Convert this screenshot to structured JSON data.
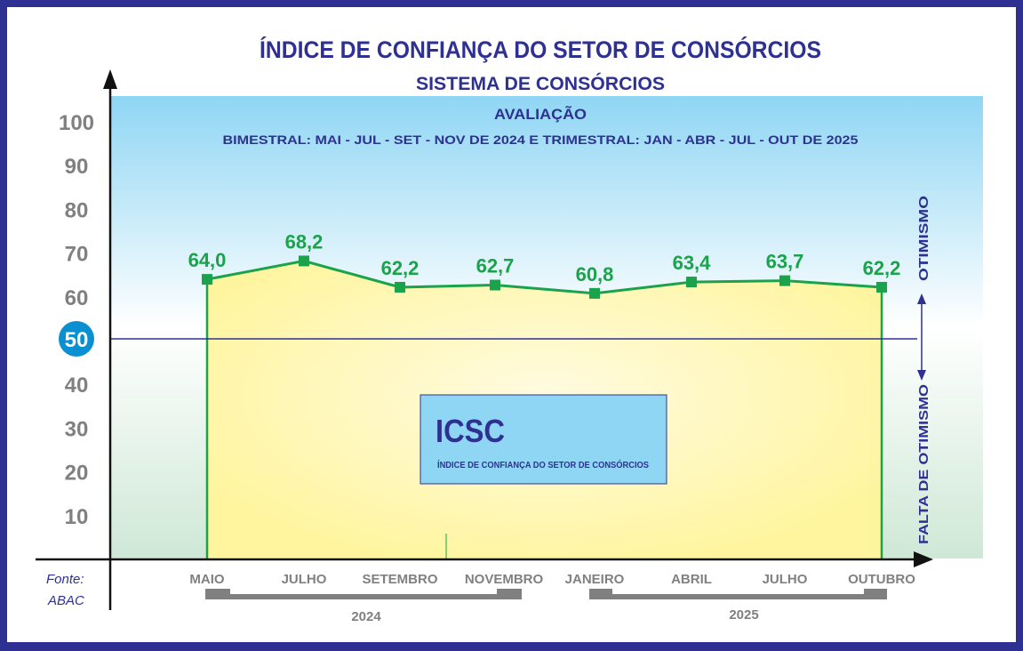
{
  "chart_data": {
    "type": "line",
    "title": "ÍNDICE DE CONFIANÇA DO SETOR DE CONSÓRCIOS",
    "subtitle": "SISTEMA DE CONSÓRCIOS",
    "evaluation_title": "AVALIAÇÃO",
    "evaluation_text": "BIMESTRAL: MAI - JUL - SET - NOV DE 2024 E TRIMESTRAL: JAN - ABR - JUL - OUT DE 2025",
    "categories": [
      "MAIO",
      "JULHO",
      "SETEMBRO",
      "NOVEMBRO",
      "JANEIRO",
      "ABRIL",
      "JULHO",
      "OUTUBRO"
    ],
    "values": [
      64.0,
      68.2,
      62.2,
      62.7,
      60.8,
      63.4,
      63.7,
      62.2
    ],
    "value_labels": [
      "64,0",
      "68,2",
      "62,2",
      "62,7",
      "60,8",
      "63,4",
      "63,7",
      "62,2"
    ],
    "y_ticks": [
      "10",
      "20",
      "30",
      "40",
      "50",
      "60",
      "70",
      "80",
      "90",
      "100"
    ],
    "ylim": [
      0,
      100
    ],
    "reference_value": 50,
    "reference_label": "50",
    "upper_label": "OTIMISMO",
    "lower_label": "FALTA DE OTIMISMO",
    "year_groups": [
      "2024",
      "2025"
    ],
    "legend_box": {
      "title": "ICSC",
      "text": "ÍNDICE DE CONFIANÇA DO SETOR DE CONSÓRCIOS"
    },
    "source_label": "Fonte:",
    "source": "ABAC",
    "colors": {
      "line": "#1aa34a",
      "fill": "#fff8a8",
      "title": "#2e3192",
      "frame": "#2e3192",
      "ref_circle": "#0a8fd1"
    }
  }
}
